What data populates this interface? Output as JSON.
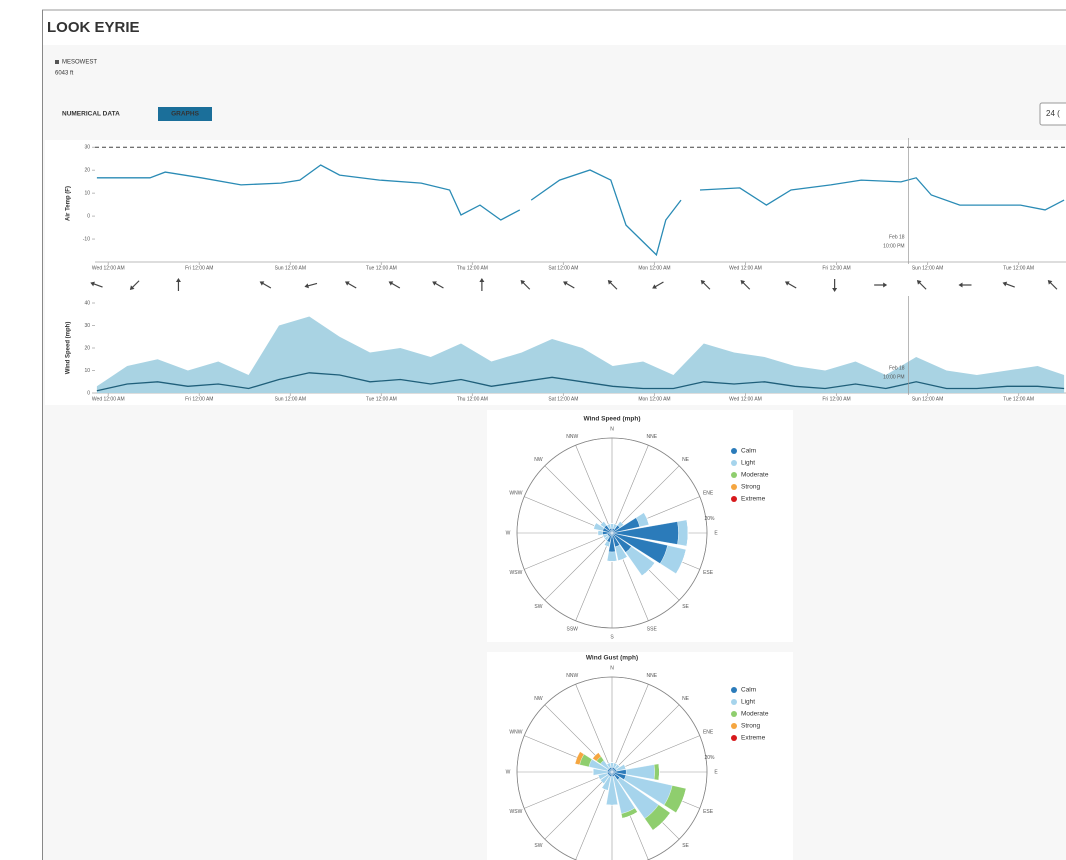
{
  "header": {
    "title": "LOOK EYRIE",
    "source": "MESOWEST",
    "elevation": "6043 ft"
  },
  "tabs": [
    "NUMERICAL DATA",
    "GRAPHS"
  ],
  "range_button": "24 (",
  "chart_data": [
    {
      "type": "line",
      "ylabel": "Air Temp (F)",
      "xlim": [
        -7,
        505
      ],
      "ylim": [
        -20,
        31
      ],
      "yticks": [
        -10,
        0,
        10,
        20,
        30
      ],
      "reference_line": 30,
      "xticks": [
        {
          "value": 0,
          "label": "Wed 12:00 AM"
        },
        {
          "value": 48,
          "label": "Fri 12:00 AM"
        },
        {
          "value": 96,
          "label": "Sun 12:00 AM"
        },
        {
          "value": 144,
          "label": "Tue 12:00 AM"
        },
        {
          "value": 192,
          "label": "Thu 12:00 AM"
        },
        {
          "value": 240,
          "label": "Sat 12:00 AM"
        },
        {
          "value": 288,
          "label": "Mon 12:00 AM"
        },
        {
          "value": 336,
          "label": "Wed 12:00 AM"
        },
        {
          "value": 384,
          "label": "Fri 12:00 AM"
        },
        {
          "value": 432,
          "label": "Sun 12:00 AM"
        },
        {
          "value": 480,
          "label": "Tue 12:00 AM"
        }
      ],
      "x": [
        -6,
        22,
        30,
        49,
        70,
        91,
        101,
        112,
        122,
        143,
        165,
        180,
        186,
        196,
        207,
        217,
        220,
        223,
        238,
        254,
        265,
        273,
        281,
        289,
        294,
        302,
        307,
        312,
        333,
        347,
        360,
        381,
        397,
        418,
        426,
        434,
        449,
        465,
        481,
        494,
        504
      ],
      "series": [
        {
          "color": "#2a8bb5",
          "values": [
            16.7,
            16.7,
            19.2,
            16.7,
            13.6,
            14.4,
            15.7,
            22.3,
            17.9,
            15.7,
            14.4,
            11.4,
            0.5,
            4.8,
            -1.7,
            2.7,
            null,
            7,
            15.7,
            20.1,
            15.7,
            -3.9,
            -10.4,
            -16.9,
            -1.7,
            7,
            null,
            11.4,
            12.3,
            4.8,
            11.4,
            13.6,
            15.7,
            14.9,
            16.7,
            9.2,
            4.8,
            4.8,
            4.8,
            2.7,
            7
          ]
        }
      ],
      "tooltip": {
        "x": 422,
        "lines": [
          "Feb 18",
          "10:00 PM"
        ]
      }
    },
    {
      "type": "area-line",
      "ylabel": "Wind Speed (mph)",
      "xlim": [
        -7,
        505
      ],
      "ylim": [
        0,
        40
      ],
      "yticks": [
        0,
        10,
        20,
        30,
        40
      ],
      "xticks": [
        {
          "value": 0,
          "label": "Wed 12:00 AM"
        },
        {
          "value": 48,
          "label": "Fri 12:00 AM"
        },
        {
          "value": 96,
          "label": "Sun 12:00 AM"
        },
        {
          "value": 144,
          "label": "Tue 12:00 AM"
        },
        {
          "value": 192,
          "label": "Thu 12:00 AM"
        },
        {
          "value": 240,
          "label": "Sat 12:00 AM"
        },
        {
          "value": 288,
          "label": "Mon 12:00 AM"
        },
        {
          "value": 336,
          "label": "Wed 12:00 AM"
        },
        {
          "value": 384,
          "label": "Fri 12:00 AM"
        },
        {
          "value": 432,
          "label": "Sun 12:00 AM"
        },
        {
          "value": 480,
          "label": "Tue 12:00 AM"
        }
      ],
      "x": [
        -6,
        10,
        26,
        42,
        58,
        74,
        90,
        106,
        122,
        138,
        154,
        170,
        186,
        202,
        218,
        234,
        250,
        266,
        282,
        298,
        314,
        330,
        346,
        362,
        378,
        394,
        410,
        426,
        442,
        458,
        474,
        490,
        504
      ],
      "series": [
        {
          "color": "#a9d3e3",
          "fill": true,
          "values": [
            3,
            12,
            15,
            10,
            14,
            8,
            30,
            34,
            25,
            18,
            20,
            16,
            22,
            14,
            18,
            24,
            20,
            12,
            14,
            8,
            22,
            18,
            16,
            12,
            10,
            14,
            8,
            16,
            10,
            8,
            10,
            12,
            8
          ]
        },
        {
          "color": "#1f5f7a",
          "values": [
            1,
            4,
            5,
            3,
            4,
            2,
            6,
            9,
            8,
            5,
            6,
            4,
            6,
            3,
            5,
            7,
            5,
            3,
            2,
            2,
            5,
            4,
            5,
            3,
            2,
            4,
            2,
            5,
            2,
            2,
            3,
            3,
            2
          ]
        }
      ],
      "directions": {
        "x": [
          -6,
          14,
          37,
          83,
          107,
          128,
          151,
          174,
          197,
          220,
          243,
          266,
          290,
          315,
          336,
          360,
          383,
          407,
          429,
          452,
          475,
          498
        ],
        "values": [
          290,
          225,
          0,
          300,
          255,
          300,
          300,
          300,
          0,
          315,
          300,
          315,
          240,
          315,
          315,
          300,
          180,
          90,
          315,
          270,
          290,
          315
        ]
      },
      "tooltip": {
        "x": 422,
        "lines": [
          "Feb 18",
          "10:00 PM"
        ]
      }
    },
    {
      "type": "windrose",
      "title": "Wind Speed (mph)",
      "rlim": [
        0,
        20
      ],
      "rticks": [
        {
          "value": 20,
          "label": "20%"
        }
      ],
      "directions": [
        "N",
        "NNE",
        "NE",
        "ENE",
        "E",
        "ESE",
        "SE",
        "SSE",
        "S",
        "SSW",
        "SW",
        "WSW",
        "W",
        "WNW",
        "NW",
        "NNW"
      ],
      "series": [
        {
          "name": "Calm",
          "color": "#2b7bba",
          "values": [
            1,
            1,
            2,
            6,
            14,
            12,
            5,
            3,
            4,
            2,
            1,
            1,
            2,
            2,
            2,
            1
          ]
        },
        {
          "name": "Light",
          "color": "#a6d4ec",
          "values": [
            1,
            1,
            1,
            2,
            2,
            4,
            6,
            3,
            2,
            1,
            1,
            1,
            1,
            2,
            1,
            1
          ]
        },
        {
          "name": "Moderate",
          "color": "#8fce6e",
          "values": [
            0,
            0,
            0,
            0,
            0,
            0,
            0,
            0,
            0,
            0,
            0,
            0,
            0,
            0,
            0,
            0
          ]
        },
        {
          "name": "Strong",
          "color": "#f5a640",
          "values": [
            0,
            0,
            0,
            0,
            0,
            0,
            0,
            0,
            0,
            0,
            0,
            0,
            0,
            0,
            0,
            0
          ]
        },
        {
          "name": "Extreme",
          "color": "#d7191c",
          "values": [
            0,
            0,
            0,
            0,
            0,
            0,
            0,
            0,
            0,
            0,
            0,
            0,
            0,
            0,
            0,
            0
          ]
        }
      ]
    },
    {
      "type": "windrose",
      "title": "Wind Gust (mph)",
      "rlim": [
        0,
        20
      ],
      "rticks": [
        {
          "value": 20,
          "label": "20%"
        }
      ],
      "directions": [
        "N",
        "NNE",
        "NE",
        "ENE",
        "E",
        "ESE",
        "SE",
        "SSE",
        "S",
        "SSW",
        "SW",
        "WSW",
        "W",
        "WNW",
        "NW",
        "NNW"
      ],
      "series": [
        {
          "name": "Calm",
          "color": "#2b7bba",
          "values": [
            1,
            1,
            1,
            1,
            3,
            3,
            2,
            1,
            1,
            1,
            1,
            1,
            1,
            1,
            1,
            1
          ]
        },
        {
          "name": "Light",
          "color": "#a6d4ec",
          "values": [
            1,
            1,
            1,
            2,
            6,
            10,
            10,
            8,
            6,
            3,
            2,
            2,
            3,
            4,
            2,
            1
          ]
        },
        {
          "name": "Moderate",
          "color": "#8fce6e",
          "values": [
            0,
            0,
            0,
            0,
            1,
            3,
            3,
            1,
            0,
            0,
            0,
            0,
            0,
            2,
            1,
            0
          ]
        },
        {
          "name": "Strong",
          "color": "#f5a640",
          "values": [
            0,
            0,
            0,
            0,
            0,
            0,
            0,
            0,
            0,
            0,
            0,
            0,
            0,
            1,
            1,
            0
          ]
        },
        {
          "name": "Extreme",
          "color": "#d7191c",
          "values": [
            0,
            0,
            0,
            0,
            0,
            0,
            0,
            0,
            0,
            0,
            0,
            0,
            0,
            0,
            0,
            0
          ]
        }
      ]
    }
  ]
}
